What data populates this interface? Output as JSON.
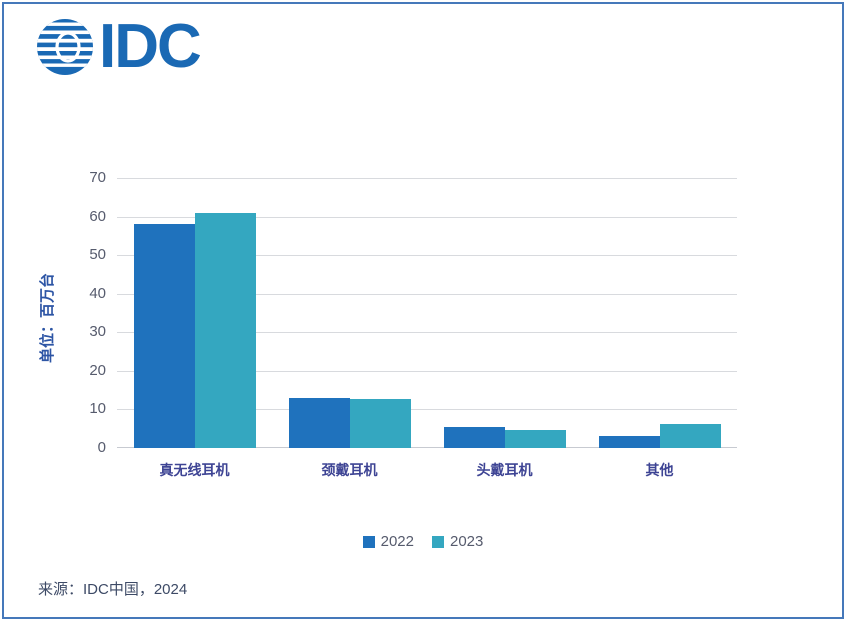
{
  "logo": {
    "text": "IDC"
  },
  "source_text": "来源：IDC中国，2024",
  "colors": {
    "brand_blue": "#1a69b4",
    "frame_border": "#4578ba",
    "grid_line": "#d8dade",
    "axis_line": "#c7cad1",
    "tick_text": "#565b6d",
    "category_text": "#3e4494",
    "axis_title_text": "#2d55a5",
    "legend_text": "#565b6d",
    "source_text": "#3d4a66"
  },
  "chart_data": {
    "type": "bar",
    "title": "",
    "categories": [
      "真无线耳机",
      "颈戴耳机",
      "头戴耳机",
      "其他"
    ],
    "series": [
      {
        "name": "2022",
        "color": "#1f72bd",
        "values": [
          58,
          13,
          5.5,
          3
        ]
      },
      {
        "name": "2023",
        "color": "#34a7c0",
        "values": [
          61,
          12.8,
          4.8,
          6.3
        ]
      }
    ],
    "xlabel": "",
    "ylabel": "单位：百万台",
    "ylim": [
      0,
      70
    ],
    "ytick_step": 10,
    "grid": true,
    "legend_position": "bottom"
  }
}
